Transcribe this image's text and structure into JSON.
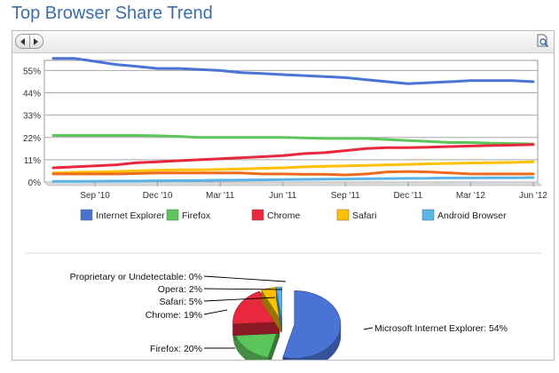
{
  "page": {
    "title": "Top Browser Share Trend"
  },
  "toolbar": {
    "prev_icon": "chevron-left-icon",
    "next_icon": "chevron-right-icon",
    "zoom_icon": "magnifier-page-icon"
  },
  "chart_data": [
    {
      "type": "line",
      "title": "",
      "x_ticks": [
        "Sep '10",
        "Dec '10",
        "Mar '11",
        "Jun '11",
        "Sep '11",
        "Dec '11",
        "Mar '12",
        "Jun '12"
      ],
      "x_range": [
        "2010-07",
        "2012-06"
      ],
      "y_ticks": [
        "55%",
        "44%",
        "33%",
        "22%",
        "11%",
        "0%"
      ],
      "ylim": [
        0,
        60
      ],
      "grid": true,
      "legend_position": "bottom",
      "x": [
        "2010-07",
        "2010-08",
        "2010-09",
        "2010-10",
        "2010-11",
        "2010-12",
        "2011-01",
        "2011-02",
        "2011-03",
        "2011-04",
        "2011-05",
        "2011-06",
        "2011-07",
        "2011-08",
        "2011-09",
        "2011-10",
        "2011-11",
        "2011-12",
        "2012-01",
        "2012-02",
        "2012-03",
        "2012-04",
        "2012-05",
        "2012-06"
      ],
      "series": [
        {
          "name": "Internet Explorer",
          "color": "#4a73d6",
          "values": [
            61,
            61,
            59.5,
            58,
            57,
            56,
            56,
            55.5,
            55,
            54,
            53.5,
            53,
            52.5,
            52,
            51.5,
            50.5,
            49.5,
            48.5,
            49,
            49.5,
            50,
            50,
            50,
            49.5
          ]
        },
        {
          "name": "Firefox",
          "color": "#5cc55c",
          "values": [
            23,
            23,
            23,
            23,
            23,
            22.8,
            22.5,
            22,
            22,
            22,
            22,
            22,
            21.8,
            21.5,
            21.5,
            21.5,
            21,
            20.5,
            20,
            19.5,
            19.5,
            19.2,
            19,
            18.8
          ]
        },
        {
          "name": "Chrome",
          "color": "#e8293d",
          "values": [
            7,
            7.5,
            8,
            8.5,
            9.5,
            10,
            10.5,
            11,
            11.5,
            12,
            12.5,
            13,
            14,
            14.5,
            15.5,
            16.5,
            17,
            17,
            17.2,
            17.5,
            17.8,
            18,
            18.2,
            18.5
          ]
        },
        {
          "name": "Safari",
          "color": "#ffc000",
          "values": [
            4.5,
            4.8,
            5,
            5.2,
            5.5,
            5.8,
            6,
            6,
            6.2,
            6.5,
            6.8,
            7,
            7.5,
            7.8,
            8,
            8.2,
            8.5,
            8.7,
            9,
            9.2,
            9.4,
            9.5,
            9.7,
            10
          ]
        },
        {
          "name": "Android Browser",
          "color": "#5ab4ea",
          "values": [
            0.3,
            0.3,
            0.4,
            0.5,
            0.5,
            0.6,
            0.7,
            0.8,
            0.9,
            1,
            1.1,
            1.2,
            1.3,
            1.4,
            1.5,
            1.6,
            1.7,
            1.8,
            1.9,
            2,
            2,
            2.1,
            2.1,
            2.2
          ]
        },
        {
          "name": "",
          "color": "#ee6c1e",
          "values": [
            4,
            4,
            4,
            4,
            4.2,
            4.5,
            4.5,
            4.5,
            4.5,
            4.5,
            4,
            4,
            3.8,
            3.8,
            3.5,
            4,
            5,
            5.2,
            5,
            4.5,
            4,
            4,
            4,
            4
          ]
        }
      ]
    },
    {
      "type": "pie",
      "title": "",
      "slices": [
        {
          "label": "Microsoft Internet Explorer: 54%",
          "value": 54,
          "color": "#4a73d6"
        },
        {
          "label": "Firefox: 20%",
          "value": 20,
          "color": "#5cc55c"
        },
        {
          "label": "Chrome: 19%",
          "value": 19,
          "color": "#e8293d"
        },
        {
          "label": "Safari: 5%",
          "value": 5,
          "color": "#ffc000"
        },
        {
          "label": "Opera: 2%",
          "value": 2,
          "color": "#5ab4ea"
        },
        {
          "label": "Proprietary or Undetectable: 0%",
          "value": 0,
          "color": "#ee6c1e"
        }
      ]
    }
  ]
}
